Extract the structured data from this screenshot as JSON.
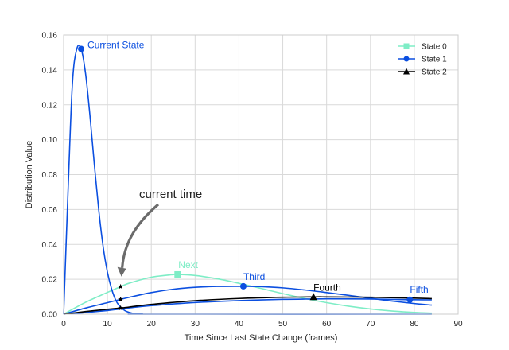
{
  "chart_data": {
    "type": "line",
    "xlabel": "Time Since Last State Change (frames)",
    "ylabel": "Distribution Value",
    "xlim": [
      0,
      90
    ],
    "ylim": [
      0,
      0.16
    ],
    "xticks": [
      0,
      10,
      20,
      30,
      40,
      50,
      60,
      70,
      80,
      90
    ],
    "yticks": [
      0.0,
      0.02,
      0.04,
      0.06,
      0.08,
      0.1,
      0.12,
      0.14,
      0.16
    ],
    "ytick_labels": [
      "0.00",
      "0.02",
      "0.04",
      "0.06",
      "0.08",
      "0.10",
      "0.12",
      "0.14",
      "0.16"
    ],
    "grid": true,
    "legend": "top-right",
    "series": [
      {
        "name": "State 0",
        "color": "#7eedc6",
        "marker": "square",
        "x": [
          0,
          5,
          10,
          13,
          15,
          20,
          25,
          26,
          30,
          35,
          40,
          45,
          50,
          55,
          60,
          65,
          70,
          75,
          80,
          84
        ],
        "y": [
          0.0,
          0.0068,
          0.0125,
          0.0158,
          0.0178,
          0.0212,
          0.0227,
          0.0228,
          0.0222,
          0.0203,
          0.0177,
          0.0148,
          0.0118,
          0.009,
          0.0066,
          0.0046,
          0.003,
          0.0018,
          0.001,
          0.0006
        ]
      },
      {
        "name": "State 1",
        "color": "#0b4fe0",
        "marker": "circle",
        "x": [
          0,
          1,
          2,
          3,
          4,
          5,
          6,
          7,
          8,
          9,
          10,
          11,
          12,
          13,
          14,
          15,
          16,
          18,
          20,
          84
        ],
        "y": [
          0.0,
          0.07,
          0.132,
          0.152,
          0.152,
          0.138,
          0.114,
          0.086,
          0.06,
          0.039,
          0.024,
          0.014,
          0.0075,
          0.004,
          0.002,
          0.001,
          0.0004,
          0.0001,
          0.0,
          0.0
        ]
      },
      {
        "name": "State 1",
        "color": "#0b4fe0",
        "marker": "circle",
        "x": [
          0,
          5,
          10,
          13,
          15,
          20,
          25,
          30,
          35,
          40,
          41,
          45,
          50,
          55,
          60,
          65,
          70,
          75,
          80,
          84
        ],
        "y": [
          0.0,
          0.0035,
          0.0066,
          0.0085,
          0.0097,
          0.0124,
          0.0143,
          0.0154,
          0.0159,
          0.016,
          0.016,
          0.0158,
          0.0151,
          0.0139,
          0.0124,
          0.0108,
          0.0091,
          0.0075,
          0.0061,
          0.0052
        ]
      },
      {
        "name": "State 1",
        "color": "#0b4fe0",
        "marker": "circle",
        "x": [
          0,
          5,
          10,
          13,
          15,
          20,
          30,
          40,
          50,
          57,
          60,
          70,
          79,
          80,
          84
        ],
        "y": [
          0.0,
          0.0009,
          0.0021,
          0.003,
          0.0036,
          0.0049,
          0.0067,
          0.0078,
          0.0085,
          0.0087,
          0.0088,
          0.0087,
          0.0083,
          0.0083,
          0.0082
        ]
      },
      {
        "name": "State 2",
        "color": "#000000",
        "marker": "triangle",
        "x": [
          0,
          5,
          10,
          13,
          15,
          20,
          30,
          40,
          50,
          57,
          60,
          70,
          80,
          84
        ],
        "y": [
          0.0,
          0.0015,
          0.0028,
          0.0035,
          0.0041,
          0.0056,
          0.0077,
          0.009,
          0.0097,
          0.0099,
          0.0099,
          0.0097,
          0.0092,
          0.0089
        ]
      }
    ],
    "point_labels": [
      {
        "text": "Current State",
        "x": 4,
        "y": 0.152,
        "color": "#0b4fe0"
      },
      {
        "text": "Next",
        "x": 26,
        "y": 0.0228,
        "color": "#7eedc6"
      },
      {
        "text": "Third",
        "x": 41,
        "y": 0.016,
        "color": "#0b4fe0"
      },
      {
        "text": "Fourth",
        "x": 57,
        "y": 0.0099,
        "color": "#000000"
      },
      {
        "text": "Fifth",
        "x": 79,
        "y": 0.0083,
        "color": "#0b4fe0"
      }
    ],
    "current_time": {
      "text": "current time",
      "x": 13,
      "y_values": [
        0.0158,
        0.0085,
        0.0035
      ]
    }
  }
}
